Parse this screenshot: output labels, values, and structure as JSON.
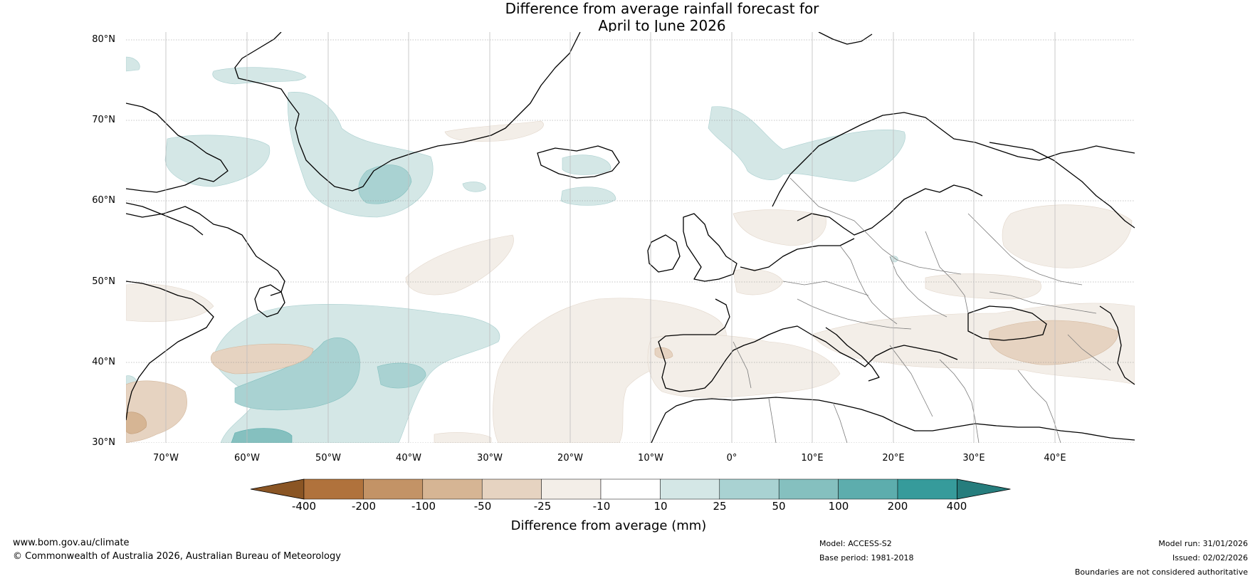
{
  "title": {
    "line1": "Difference from average rainfall forecast for",
    "line2": "April to June 2026"
  },
  "map": {
    "lat_labels": [
      "80°N",
      "70°N",
      "60°N",
      "50°N",
      "40°N",
      "30°N"
    ],
    "lon_labels": [
      "70°W",
      "60°W",
      "50°W",
      "40°W",
      "30°W",
      "20°W",
      "10°W",
      "0°",
      "10°E",
      "20°E",
      "30°E",
      "40°E"
    ]
  },
  "colorbar": {
    "ticks": [
      "-400",
      "-200",
      "-100",
      "-50",
      "-25",
      "-10",
      "10",
      "25",
      "50",
      "100",
      "200",
      "400"
    ],
    "label": "Difference from average (mm)",
    "colors": {
      "below_400": "#8a5524",
      "c1": "#b0723c",
      "c2": "#c39366",
      "c3": "#d6b594",
      "c4": "#e6d3c1",
      "c5": "#f3eee8",
      "c6": "#ffffff",
      "c7": "#d4e7e6",
      "c8": "#a9d2d2",
      "c9": "#85c0bf",
      "c10": "#5dadad",
      "c11": "#369b9b",
      "above_400": "#267d7d"
    }
  },
  "footer": {
    "website": "www.bom.gov.au/climate",
    "copyright": "© Commonwealth of Australia 2026, Australian Bureau of Meteorology",
    "model": "Model: ACCESS-S2",
    "base_period": "Base period: 1981-2018",
    "model_run": "Model run: 31/01/2026",
    "issued": "Issued: 02/02/2026",
    "disclaimer": "Boundaries are not considered authoritative"
  }
}
